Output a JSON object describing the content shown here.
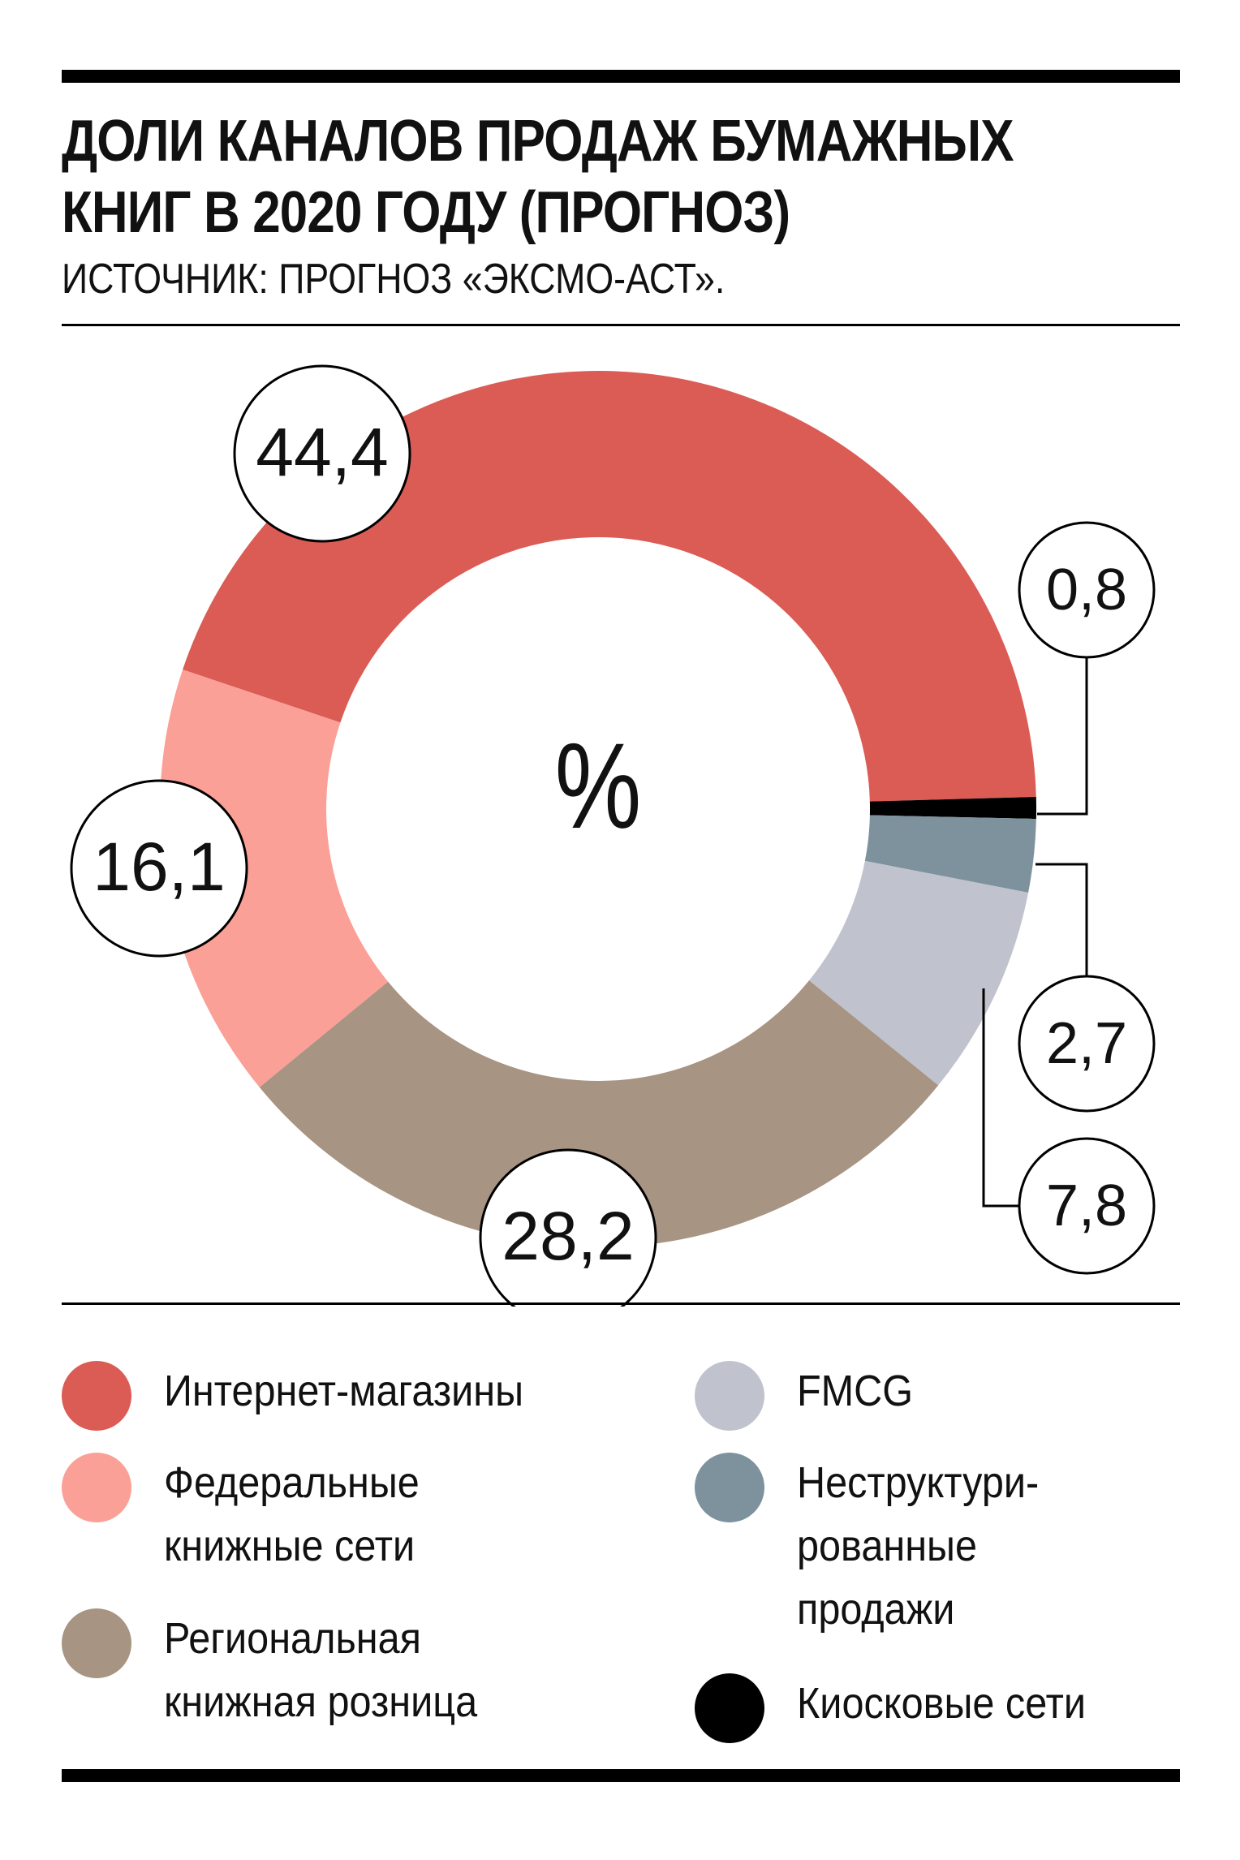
{
  "title_line1": "ДОЛИ КАНАЛОВ ПРОДАЖ БУМАЖНЫХ",
  "title_line2": "КНИГ В 2020 ГОДУ (ПРОГНОЗ)",
  "source": "ИСТОЧНИК: ПРОГНОЗ «ЭКСМО-АСТ».",
  "chart_data": {
    "type": "pie",
    "center_label": "%",
    "slices": [
      {
        "name": "Интернет-магазины",
        "value": 44.4,
        "label": "44,4",
        "color": "#db5b55"
      },
      {
        "name": "Киосковые сети",
        "value": 0.8,
        "label": "0,8",
        "color": "#000000"
      },
      {
        "name": "Неструктурированные продажи",
        "value": 2.7,
        "label": "2,7",
        "color": "#7e929e"
      },
      {
        "name": "FMCG",
        "value": 7.8,
        "label": "7,8",
        "color": "#c0c3ce"
      },
      {
        "name": "Региональная книжная розница",
        "value": 28.2,
        "label": "28,2",
        "color": "#a79482"
      },
      {
        "name": "Федеральные книжные сети",
        "value": 16.1,
        "label": "16,1",
        "color": "#fba096"
      }
    ]
  },
  "legend": {
    "internet": {
      "text": "Интернет-магазины",
      "color": "#db5b55"
    },
    "federal": {
      "text": "Федеральные\nкнижные сети",
      "color": "#fba096"
    },
    "regional": {
      "text": "Региональная\nкнижная розница",
      "color": "#a79482"
    },
    "fmcg": {
      "text": "FMCG",
      "color": "#c0c3ce"
    },
    "unstructured": {
      "text": "Неструктури-\nрованные\nпродажи",
      "color": "#7e929e"
    },
    "kiosk": {
      "text": "Киосковые сети",
      "color": "#000000"
    }
  }
}
